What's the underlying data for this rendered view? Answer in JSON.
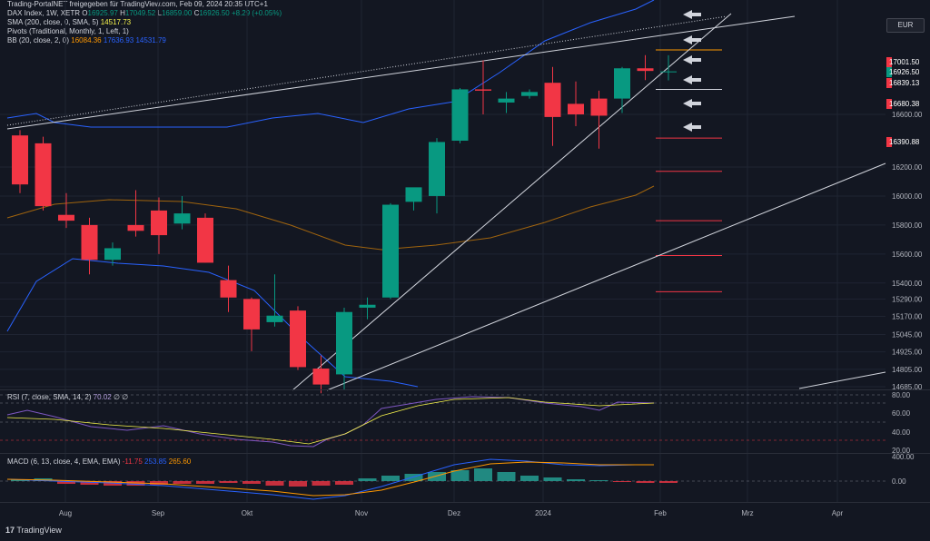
{
  "header": {
    "title_line": "Trading-PortalNET freigegeben für TradingView.com, Feb 09, 2024 20:35 UTC+1",
    "symbol": "DAX Index, 1W, XETR",
    "ohlc": {
      "o_label": "O",
      "o": "16925.97",
      "h_label": "H",
      "h": "17049.52",
      "l_label": "L",
      "l": "16859.00",
      "c_label": "C",
      "c": "16926.50",
      "change": "+8.29 (+0.05%)"
    },
    "sma_label": "SMA (200, close, 0, SMA, 5)",
    "sma_value": "14517.73",
    "pivots_label": "Pivots (Traditional, Monthly, 1, Left, 1)",
    "bb_label": "BB (20, close, 2, 0)",
    "bb_values": [
      "16084.36",
      "17636.93",
      "14531.79"
    ],
    "currency": "EUR"
  },
  "rsi": {
    "label": "RSI (7, close, SMA, 14, 2)",
    "value": "70.02",
    "extra": "∅ ∅"
  },
  "macd": {
    "label": "MACD (6, 13, close, 4, EMA, EMA)",
    "values": [
      "-11.75",
      "253.85",
      "265.60"
    ]
  },
  "price_tags": [
    {
      "text": "17001.50",
      "color": "#f23645",
      "price": 17001.5
    },
    {
      "text": "16926.50",
      "color": "#089981",
      "price": 16926.5
    },
    {
      "text": "16839.13",
      "color": "#f23645",
      "price": 16839.13
    },
    {
      "text": "16680.38",
      "color": "#f23645",
      "price": 16680.38
    },
    {
      "text": "16390.88",
      "color": "#f23645",
      "price": 16390.88
    }
  ],
  "footer": {
    "logo_text": "TradingView"
  },
  "chart_data": {
    "type": "candlestick",
    "y_ticks": [
      "16600.00",
      "16200.00",
      "16000.00",
      "15800.00",
      "15600.00",
      "15400.00",
      "15290.00",
      "15170.00",
      "15045.00",
      "14925.00",
      "14805.00",
      "14685.00"
    ],
    "x_ticks": [
      "Aug",
      "Sep",
      "Okt",
      "Nov",
      "Dez",
      "2024",
      "Feb",
      "Mrz",
      "Apr"
    ],
    "rsi_ticks": [
      "80.00",
      "60.00",
      "40.00",
      "20.00"
    ],
    "macd_ticks": [
      "400.00",
      "0.00"
    ],
    "candles": [
      {
        "o": 16440,
        "h": 16480,
        "l": 16020,
        "c": 16080
      },
      {
        "o": 16380,
        "h": 16430,
        "l": 15900,
        "c": 15930
      },
      {
        "o": 15870,
        "h": 16020,
        "l": 15780,
        "c": 15830
      },
      {
        "o": 15800,
        "h": 15850,
        "l": 15460,
        "c": 15560
      },
      {
        "o": 15560,
        "h": 15680,
        "l": 15520,
        "c": 15640
      },
      {
        "o": 15800,
        "h": 16040,
        "l": 15720,
        "c": 15760
      },
      {
        "o": 15900,
        "h": 15990,
        "l": 15600,
        "c": 15730
      },
      {
        "o": 15810,
        "h": 16000,
        "l": 15770,
        "c": 15880
      },
      {
        "o": 15850,
        "h": 15880,
        "l": 15540,
        "c": 15540
      },
      {
        "o": 15420,
        "h": 15520,
        "l": 15200,
        "c": 15300
      },
      {
        "o": 15290,
        "h": 15300,
        "l": 14930,
        "c": 15080
      },
      {
        "o": 15130,
        "h": 15460,
        "l": 15100,
        "c": 15175
      },
      {
        "o": 15210,
        "h": 15240,
        "l": 14800,
        "c": 14820
      },
      {
        "o": 14810,
        "h": 14900,
        "l": 14640,
        "c": 14700
      },
      {
        "o": 14770,
        "h": 15230,
        "l": 14660,
        "c": 15200
      },
      {
        "o": 15230,
        "h": 15300,
        "l": 15150,
        "c": 15250
      },
      {
        "o": 15300,
        "h": 15950,
        "l": 15290,
        "c": 15940
      },
      {
        "o": 15960,
        "h": 16050,
        "l": 15900,
        "c": 16060
      },
      {
        "o": 16000,
        "h": 16420,
        "l": 15880,
        "c": 16390
      },
      {
        "o": 16400,
        "h": 16800,
        "l": 16380,
        "c": 16790
      },
      {
        "o": 16790,
        "h": 17010,
        "l": 16600,
        "c": 16780
      },
      {
        "o": 16690,
        "h": 16770,
        "l": 16610,
        "c": 16720
      },
      {
        "o": 16740,
        "h": 16790,
        "l": 16720,
        "c": 16770
      },
      {
        "o": 16840,
        "h": 16960,
        "l": 16360,
        "c": 16580
      },
      {
        "o": 16680,
        "h": 16850,
        "l": 16510,
        "c": 16600
      },
      {
        "o": 16720,
        "h": 16780,
        "l": 16340,
        "c": 16590
      },
      {
        "o": 16720,
        "h": 16960,
        "l": 16610,
        "c": 16950
      },
      {
        "o": 16950,
        "h": 17050,
        "l": 16860,
        "c": 16930
      },
      {
        "o": 16925.97,
        "h": 17049.52,
        "l": 16859,
        "c": 16926.5
      }
    ]
  }
}
